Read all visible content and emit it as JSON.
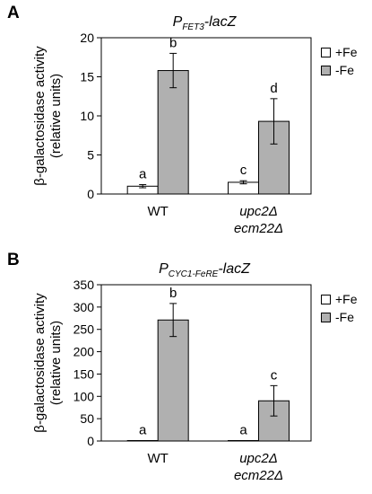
{
  "colors": {
    "plus_fe": "#ffffff",
    "minus_fe": "#b0b0b0",
    "axis": "#000000"
  },
  "panels": [
    {
      "letter": "A",
      "title_main": "P",
      "title_sub": "FET3",
      "title_tail": "-lacZ",
      "ylabel_line1": "β-galactosidase activity",
      "ylabel_line2": "(relative units)",
      "legend": [
        "+Fe",
        "-Fe"
      ]
    },
    {
      "letter": "B",
      "title_main": "P",
      "title_sub": "CYC1-FeRE",
      "title_tail": "-lacZ",
      "ylabel_line1": "β-galactosidase activity",
      "ylabel_line2": "(relative units)",
      "legend": [
        "+Fe",
        "-Fe"
      ]
    }
  ],
  "chart_data": [
    {
      "type": "bar",
      "title": "PFET3-lacZ",
      "ylabel": "β-galactosidase activity (relative units)",
      "categories": [
        "WT",
        "upc2Δ ecm22Δ"
      ],
      "category_lines": [
        [
          "WT"
        ],
        [
          "upc2Δ",
          "ecm22Δ"
        ]
      ],
      "category_italic": [
        false,
        true
      ],
      "ylim": [
        0,
        20
      ],
      "yticks": [
        0,
        5,
        10,
        15,
        20
      ],
      "legend": "right",
      "series": [
        {
          "name": "+Fe",
          "values": [
            1.0,
            1.5
          ],
          "errors": [
            0.2,
            0.2
          ],
          "labels": [
            "a",
            "c"
          ]
        },
        {
          "name": "-Fe",
          "values": [
            15.8,
            9.3
          ],
          "errors": [
            2.2,
            2.9
          ],
          "labels": [
            "b",
            "d"
          ]
        }
      ]
    },
    {
      "type": "bar",
      "title": "PCYC1-FeRE-lacZ",
      "ylabel": "β-galactosidase activity (relative units)",
      "categories": [
        "WT",
        "upc2Δ ecm22Δ"
      ],
      "category_lines": [
        [
          "WT"
        ],
        [
          "upc2Δ",
          "ecm22Δ"
        ]
      ],
      "category_italic": [
        false,
        true
      ],
      "ylim": [
        0,
        350
      ],
      "yticks": [
        0,
        50,
        100,
        150,
        200,
        250,
        300,
        350
      ],
      "legend": "right",
      "series": [
        {
          "name": "+Fe",
          "values": [
            1,
            1
          ],
          "errors": [
            0,
            0
          ],
          "labels": [
            "a",
            "a"
          ]
        },
        {
          "name": "-Fe",
          "values": [
            271,
            90
          ],
          "errors": [
            37,
            34
          ],
          "labels": [
            "b",
            "c"
          ]
        }
      ]
    }
  ]
}
